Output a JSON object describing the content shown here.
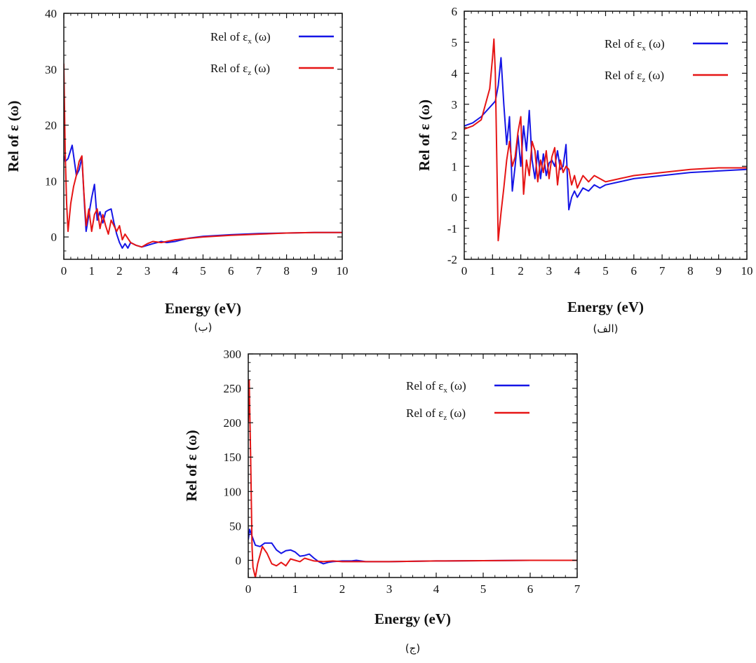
{
  "series_colors": {
    "blue": "#1515e6",
    "red": "#e61515"
  },
  "chart_data": [
    {
      "type": "line",
      "caption": "(ب)",
      "ylabel": "Rel of ε (ω)",
      "xlabel": "Energy (eV)",
      "xlim": [
        0,
        10
      ],
      "ylim": [
        -4,
        40
      ],
      "xticks": [
        "0",
        "1",
        "2",
        "3",
        "4",
        "5",
        "6",
        "7",
        "8",
        "9",
        "10"
      ],
      "yticks": [
        "0",
        "10",
        "20",
        "30",
        "40"
      ],
      "legend_position": "top-right",
      "grid": false,
      "series": [
        {
          "name_prefix": "Rel of ε",
          "name_sub": "x",
          "name_suffix": "(ω)",
          "color": "#1515e6",
          "points": [
            [
              0,
              14.5
            ],
            [
              0.05,
              13.5
            ],
            [
              0.15,
              14
            ],
            [
              0.3,
              16.4
            ],
            [
              0.45,
              11
            ],
            [
              0.55,
              12
            ],
            [
              0.65,
              14.2
            ],
            [
              0.75,
              5
            ],
            [
              0.8,
              1
            ],
            [
              0.9,
              4
            ],
            [
              1.0,
              7
            ],
            [
              1.1,
              9.4
            ],
            [
              1.2,
              3
            ],
            [
              1.3,
              4.5
            ],
            [
              1.4,
              2.5
            ],
            [
              1.5,
              4.5
            ],
            [
              1.6,
              4.8
            ],
            [
              1.7,
              5
            ],
            [
              1.8,
              2.5
            ],
            [
              1.9,
              0.5
            ],
            [
              2.0,
              -1
            ],
            [
              2.1,
              -2
            ],
            [
              2.2,
              -1.2
            ],
            [
              2.3,
              -2
            ],
            [
              2.4,
              -1
            ],
            [
              2.6,
              -1.5
            ],
            [
              2.8,
              -1.8
            ],
            [
              3.0,
              -1.5
            ],
            [
              3.2,
              -1.2
            ],
            [
              3.5,
              -0.8
            ],
            [
              3.7,
              -1
            ],
            [
              4.0,
              -0.8
            ],
            [
              4.5,
              -0.2
            ],
            [
              5,
              0.1
            ],
            [
              6,
              0.4
            ],
            [
              7,
              0.6
            ],
            [
              8,
              0.7
            ],
            [
              9,
              0.8
            ],
            [
              10,
              0.8
            ]
          ]
        },
        {
          "name_prefix": "Rel of ε",
          "name_sub": "z",
          "name_suffix": "(ω)",
          "color": "#e61515",
          "points": [
            [
              0,
              31
            ],
            [
              0.05,
              15
            ],
            [
              0.1,
              6
            ],
            [
              0.15,
              1
            ],
            [
              0.25,
              6
            ],
            [
              0.35,
              9
            ],
            [
              0.45,
              11
            ],
            [
              0.55,
              13.5
            ],
            [
              0.65,
              14.5
            ],
            [
              0.72,
              8
            ],
            [
              0.8,
              2
            ],
            [
              0.9,
              5
            ],
            [
              1.0,
              1
            ],
            [
              1.1,
              4
            ],
            [
              1.2,
              5
            ],
            [
              1.3,
              1.5
            ],
            [
              1.4,
              4
            ],
            [
              1.5,
              2
            ],
            [
              1.6,
              0.5
            ],
            [
              1.7,
              3
            ],
            [
              1.8,
              2
            ],
            [
              1.9,
              1
            ],
            [
              2.0,
              2
            ],
            [
              2.1,
              -0.5
            ],
            [
              2.2,
              0.5
            ],
            [
              2.4,
              -1
            ],
            [
              2.6,
              -1.5
            ],
            [
              2.8,
              -1.8
            ],
            [
              3.0,
              -1.2
            ],
            [
              3.2,
              -0.8
            ],
            [
              3.5,
              -1
            ],
            [
              4,
              -0.5
            ],
            [
              5,
              0
            ],
            [
              6,
              0.3
            ],
            [
              7,
              0.5
            ],
            [
              8,
              0.7
            ],
            [
              9,
              0.8
            ],
            [
              10,
              0.8
            ]
          ]
        }
      ]
    },
    {
      "type": "line",
      "caption": "(الف)",
      "ylabel": "Rel of ε (ω)",
      "xlabel": "Energy (eV)",
      "xlim": [
        0,
        10
      ],
      "ylim": [
        -2,
        6
      ],
      "xticks": [
        "0",
        "1",
        "2",
        "3",
        "4",
        "5",
        "6",
        "7",
        "8",
        "9",
        "10"
      ],
      "yticks": [
        "-2",
        "-1",
        "0",
        "1",
        "2",
        "3",
        "4",
        "5",
        "6"
      ],
      "legend_position": "top-right",
      "grid": false,
      "series": [
        {
          "name_prefix": "Rel of ε",
          "name_sub": "x",
          "name_suffix": "(ω)",
          "color": "#1515e6",
          "points": [
            [
              0,
              2.3
            ],
            [
              0.3,
              2.4
            ],
            [
              0.6,
              2.6
            ],
            [
              0.9,
              2.9
            ],
            [
              1.1,
              3.1
            ],
            [
              1.2,
              3.6
            ],
            [
              1.3,
              4.5
            ],
            [
              1.4,
              3
            ],
            [
              1.5,
              1.7
            ],
            [
              1.6,
              2.6
            ],
            [
              1.7,
              0.2
            ],
            [
              1.8,
              1
            ],
            [
              1.9,
              2
            ],
            [
              2.0,
              1
            ],
            [
              2.1,
              2.3
            ],
            [
              2.2,
              1.5
            ],
            [
              2.3,
              2.8
            ],
            [
              2.4,
              1.2
            ],
            [
              2.5,
              0.6
            ],
            [
              2.6,
              1.5
            ],
            [
              2.7,
              0.6
            ],
            [
              2.8,
              1.4
            ],
            [
              2.9,
              0.7
            ],
            [
              3.0,
              1.1
            ],
            [
              3.1,
              1.2
            ],
            [
              3.2,
              1
            ],
            [
              3.3,
              1.5
            ],
            [
              3.4,
              0.9
            ],
            [
              3.5,
              1
            ],
            [
              3.6,
              1.7
            ],
            [
              3.7,
              -0.4
            ],
            [
              3.8,
              0
            ],
            [
              3.9,
              0.2
            ],
            [
              4.0,
              0
            ],
            [
              4.2,
              0.3
            ],
            [
              4.4,
              0.2
            ],
            [
              4.6,
              0.4
            ],
            [
              4.8,
              0.3
            ],
            [
              5.0,
              0.4
            ],
            [
              5.5,
              0.5
            ],
            [
              6,
              0.6
            ],
            [
              7,
              0.7
            ],
            [
              8,
              0.8
            ],
            [
              9,
              0.85
            ],
            [
              10,
              0.9
            ]
          ]
        },
        {
          "name_prefix": "Rel of ε",
          "name_sub": "z",
          "name_suffix": "(ω)",
          "color": "#e61515",
          "points": [
            [
              0,
              2.2
            ],
            [
              0.3,
              2.3
            ],
            [
              0.6,
              2.5
            ],
            [
              0.9,
              3.5
            ],
            [
              1.0,
              4.5
            ],
            [
              1.05,
              5.1
            ],
            [
              1.1,
              4
            ],
            [
              1.2,
              -1.4
            ],
            [
              1.3,
              -0.5
            ],
            [
              1.4,
              0.3
            ],
            [
              1.5,
              1.2
            ],
            [
              1.6,
              1.8
            ],
            [
              1.7,
              1
            ],
            [
              1.8,
              1.3
            ],
            [
              1.9,
              2.1
            ],
            [
              2.0,
              2.6
            ],
            [
              2.1,
              0.1
            ],
            [
              2.2,
              1.2
            ],
            [
              2.3,
              0.7
            ],
            [
              2.4,
              1.8
            ],
            [
              2.5,
              1.5
            ],
            [
              2.6,
              0.5
            ],
            [
              2.7,
              1.2
            ],
            [
              2.8,
              0.8
            ],
            [
              2.9,
              1.5
            ],
            [
              3.0,
              0.6
            ],
            [
              3.1,
              1.3
            ],
            [
              3.2,
              1.6
            ],
            [
              3.3,
              0.4
            ],
            [
              3.4,
              1.2
            ],
            [
              3.5,
              0.8
            ],
            [
              3.6,
              1
            ],
            [
              3.7,
              0.9
            ],
            [
              3.8,
              0.4
            ],
            [
              3.9,
              0.7
            ],
            [
              4.0,
              0.3
            ],
            [
              4.2,
              0.7
            ],
            [
              4.4,
              0.5
            ],
            [
              4.6,
              0.7
            ],
            [
              4.8,
              0.6
            ],
            [
              5,
              0.5
            ],
            [
              5.5,
              0.6
            ],
            [
              6,
              0.7
            ],
            [
              7,
              0.8
            ],
            [
              8,
              0.9
            ],
            [
              9,
              0.95
            ],
            [
              10,
              0.95
            ]
          ]
        }
      ]
    },
    {
      "type": "line",
      "caption": "(ج)",
      "ylabel": "Rel of ε (ω)",
      "xlabel": "Energy (eV)",
      "xlim": [
        0,
        7
      ],
      "ylim": [
        -25,
        300
      ],
      "xticks": [
        "0",
        "1",
        "2",
        "3",
        "4",
        "5",
        "6",
        "7"
      ],
      "yticks": [
        "0",
        "50",
        "100",
        "150",
        "200",
        "250",
        "300"
      ],
      "legend_position": "top-right",
      "grid": false,
      "series": [
        {
          "name_prefix": "Rel of ε",
          "name_sub": "x",
          "name_suffix": "(ω)",
          "color": "#1515e6",
          "points": [
            [
              0,
              30
            ],
            [
              0.03,
              45
            ],
            [
              0.08,
              35
            ],
            [
              0.15,
              22
            ],
            [
              0.25,
              20
            ],
            [
              0.35,
              25
            ],
            [
              0.5,
              25
            ],
            [
              0.6,
              15
            ],
            [
              0.7,
              10
            ],
            [
              0.8,
              14
            ],
            [
              0.9,
              15
            ],
            [
              1.0,
              12
            ],
            [
              1.1,
              6
            ],
            [
              1.2,
              7
            ],
            [
              1.3,
              9
            ],
            [
              1.4,
              3
            ],
            [
              1.5,
              -2
            ],
            [
              1.6,
              -5
            ],
            [
              1.7,
              -3
            ],
            [
              1.8,
              -2
            ],
            [
              2.0,
              -1
            ],
            [
              2.2,
              -1
            ],
            [
              2.3,
              0
            ],
            [
              2.5,
              -2
            ],
            [
              3,
              -2
            ],
            [
              4,
              -1
            ],
            [
              5,
              -0.5
            ],
            [
              6,
              0
            ],
            [
              7,
              0
            ]
          ]
        },
        {
          "name_prefix": "Rel of ε",
          "name_sub": "z",
          "name_suffix": "(ω)",
          "color": "#e61515",
          "points": [
            [
              0,
              200
            ],
            [
              0.02,
              262
            ],
            [
              0.05,
              150
            ],
            [
              0.08,
              20
            ],
            [
              0.1,
              -10
            ],
            [
              0.15,
              -25
            ],
            [
              0.2,
              -5
            ],
            [
              0.3,
              20
            ],
            [
              0.4,
              10
            ],
            [
              0.5,
              -5
            ],
            [
              0.6,
              -8
            ],
            [
              0.7,
              -3
            ],
            [
              0.8,
              -8
            ],
            [
              0.9,
              2
            ],
            [
              1.0,
              0
            ],
            [
              1.1,
              -2
            ],
            [
              1.2,
              3
            ],
            [
              1.4,
              -1
            ],
            [
              1.6,
              -2
            ],
            [
              1.8,
              -1
            ],
            [
              2.0,
              -2
            ],
            [
              2.5,
              -2
            ],
            [
              3,
              -2
            ],
            [
              4,
              -1
            ],
            [
              5,
              -0.5
            ],
            [
              6,
              0
            ],
            [
              7,
              0
            ]
          ]
        }
      ]
    }
  ]
}
